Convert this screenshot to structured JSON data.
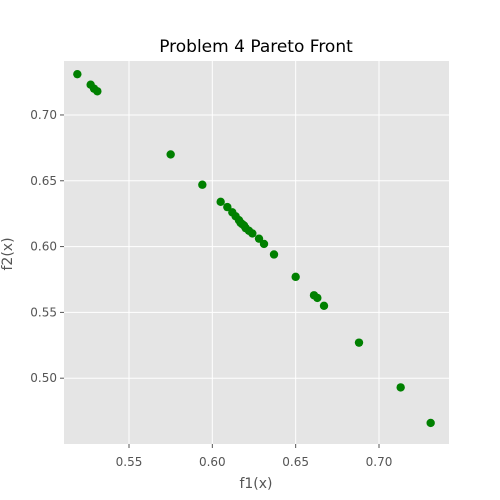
{
  "chart_data": {
    "type": "scatter",
    "title": "Problem 4 Pareto Front",
    "xlabel": "f1(x)",
    "ylabel": "f2(x)",
    "xlim": [
      0.511,
      0.742
    ],
    "ylim": [
      0.45,
      0.741
    ],
    "xticks": [
      0.55,
      0.6,
      0.65,
      0.7
    ],
    "xtick_labels": [
      "0.55",
      "0.60",
      "0.65",
      "0.70"
    ],
    "yticks": [
      0.5,
      0.55,
      0.6,
      0.65,
      0.7
    ],
    "ytick_labels": [
      "0.50",
      "0.55",
      "0.60",
      "0.65",
      "0.70"
    ],
    "grid": true,
    "colors": {
      "background": "#e5e5e5",
      "grid": "#ffffff",
      "marker": "#008000"
    },
    "series": [
      {
        "x": [
          0.519,
          0.527,
          0.529,
          0.531,
          0.575,
          0.594,
          0.605,
          0.609,
          0.612,
          0.614,
          0.616,
          0.617,
          0.618,
          0.619,
          0.62,
          0.622,
          0.624,
          0.628,
          0.631,
          0.637,
          0.65,
          0.661,
          0.663,
          0.667,
          0.688,
          0.713,
          0.731
        ],
        "y": [
          0.731,
          0.723,
          0.72,
          0.718,
          0.67,
          0.647,
          0.634,
          0.63,
          0.626,
          0.623,
          0.62,
          0.618,
          0.617,
          0.616,
          0.614,
          0.612,
          0.61,
          0.606,
          0.602,
          0.594,
          0.577,
          0.563,
          0.561,
          0.555,
          0.527,
          0.493,
          0.466
        ]
      }
    ]
  }
}
